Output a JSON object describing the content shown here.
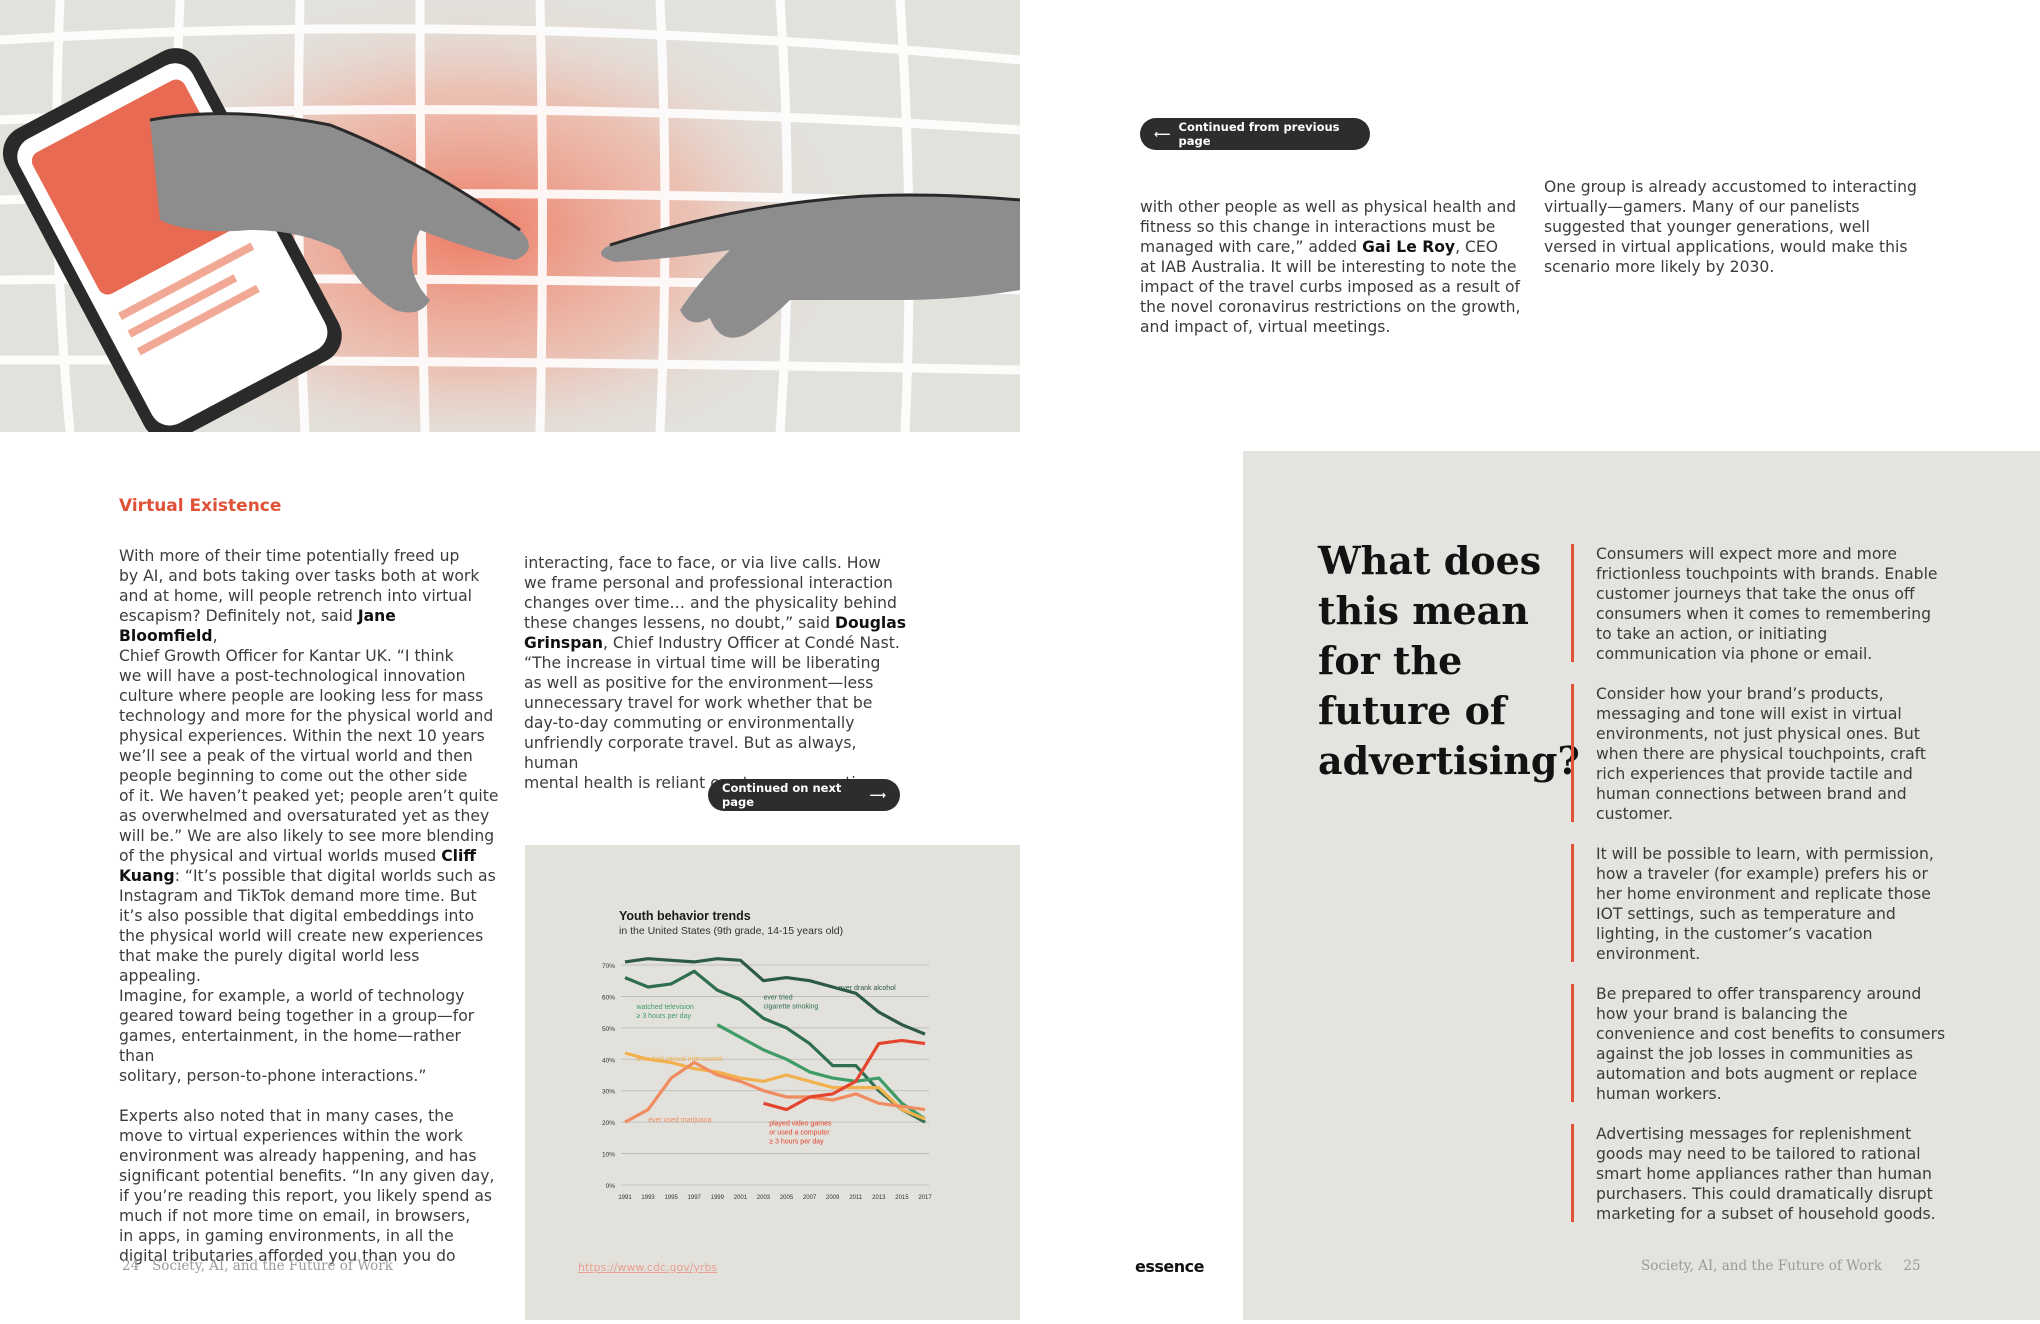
{
  "left_page": {
    "section_title": "Virtual Existence",
    "col1": [
      {
        "t": "With more of their time potentially freed up\nby AI, and bots taking over tasks both at work\nand at home, will people retrench into virtual\nescapism? Definitely not, said "
      },
      {
        "t": "Jane Bloomfield",
        "b": true
      },
      {
        "t": ",\nChief Growth Officer for Kantar UK. “I think\nwe will have a post-technological innovation\nculture where people are looking less for mass\ntechnology and more for the physical world and\nphysical experiences. Within the next 10 years\nwe’ll see a peak of the virtual world and then\npeople beginning to come out the other side\nof it. We haven’t peaked yet; people aren’t quite\nas overwhelmed and oversaturated yet as they\nwill be.” We are also likely to see more blending\nof the physical and virtual worlds mused "
      },
      {
        "t": "Cliff\nKuang",
        "b": true
      },
      {
        "t": ": “It’s possible that digital worlds such as\nInstagram and TikTok demand more time. But\nit’s also possible that digital embeddings into\nthe physical world will create new experiences\nthat make the purely digital world less appealing.\nImagine, for example, a world of technology\ngeared toward being together in a group—for\ngames, entertainment, in the home—rather than\nsolitary, person-to-phone interactions.”\n\nExperts also noted that in many cases, the\nmove to virtual experiences within the work\nenvironment was already happening, and has\nsignificant potential benefits. “In any given day,\nif you’re reading this report, you likely spend as\nmuch if not more time on email, in browsers,\nin apps, in gaming environments, in all the\ndigital tributaries afforded you than you do"
      }
    ],
    "col2": [
      {
        "t": "interacting, face to face, or via live calls. How\nwe frame personal and professional interaction\nchanges over time… and the physicality behind\nthese changes lessens, no doubt,” said "
      },
      {
        "t": "Douglas\nGrinspan",
        "b": true
      },
      {
        "t": ", Chief Industry Officer at Condé Nast.\n“The increase in virtual time will be liberating\nas well as positive for the environment—less\nunnecessary travel for work whether that be\nday-to-day commuting or environmentally\nunfriendly corporate travel. But as always, human\nmental health is reliant on strong connections"
      }
    ],
    "continued_next": "Continued on next page",
    "source_link": "https://www.cdc.gov/yrbs",
    "footer": {
      "page_number": "24",
      "title": "Society, AI, and the Future of Work"
    }
  },
  "chart_data": {
    "type": "line",
    "title": "Youth behavior trends",
    "subtitle": "in the United States (9th grade, 14-15 years old)",
    "x": [
      "1991",
      "1993",
      "1995",
      "1997",
      "1999",
      "2001",
      "2003",
      "2005",
      "2007",
      "2009",
      "2011",
      "2013",
      "2015",
      "2017"
    ],
    "y_ticks": [
      "0%",
      "10%",
      "20%",
      "30%",
      "40%",
      "50%",
      "60%",
      "70%"
    ],
    "ylim": [
      0,
      70
    ],
    "series": [
      {
        "name": "ever drank alcohol",
        "color": "#2c5a45",
        "values": [
          [
            1991,
            71
          ],
          [
            1993,
            72
          ],
          [
            1995,
            71.5
          ],
          [
            1997,
            71
          ],
          [
            1999,
            72
          ],
          [
            2001,
            71.5
          ],
          [
            2003,
            65
          ],
          [
            2005,
            66
          ],
          [
            2007,
            65
          ],
          [
            2009,
            63
          ],
          [
            2011,
            61
          ],
          [
            2013,
            55
          ],
          [
            2015,
            51
          ],
          [
            2017,
            48
          ]
        ]
      },
      {
        "name": "ever tried\ncigarette smoking",
        "color": "#2e6e50",
        "values": [
          [
            1991,
            66
          ],
          [
            1993,
            63
          ],
          [
            1995,
            64
          ],
          [
            1997,
            68
          ],
          [
            1999,
            62
          ],
          [
            2001,
            59
          ],
          [
            2003,
            53
          ],
          [
            2005,
            50
          ],
          [
            2007,
            45
          ],
          [
            2009,
            38
          ],
          [
            2011,
            38
          ],
          [
            2013,
            30
          ],
          [
            2015,
            24
          ],
          [
            2017,
            20
          ]
        ]
      },
      {
        "name": "watched television\n≥ 3 hours per day",
        "color": "#3f9c67",
        "values": [
          [
            1999,
            51
          ],
          [
            2001,
            47
          ],
          [
            2003,
            43
          ],
          [
            2005,
            40
          ],
          [
            2007,
            36
          ],
          [
            2009,
            34
          ],
          [
            2011,
            33
          ],
          [
            2013,
            34
          ],
          [
            2015,
            26
          ],
          [
            2017,
            21
          ]
        ]
      },
      {
        "name": "ever had sexual intercourse",
        "color": "#f3b14e",
        "values": [
          [
            1991,
            42
          ],
          [
            1993,
            40
          ],
          [
            1995,
            39
          ],
          [
            1997,
            37
          ],
          [
            1999,
            36
          ],
          [
            2001,
            34
          ],
          [
            2003,
            33
          ],
          [
            2005,
            35
          ],
          [
            2007,
            33
          ],
          [
            2009,
            31
          ],
          [
            2011,
            31
          ],
          [
            2013,
            31
          ],
          [
            2015,
            24
          ],
          [
            2017,
            21
          ]
        ]
      },
      {
        "name": "ever used marijuana",
        "color": "#ef8c60",
        "values": [
          [
            1991,
            20
          ],
          [
            1993,
            24
          ],
          [
            1995,
            34
          ],
          [
            1997,
            39
          ],
          [
            1999,
            35
          ],
          [
            2001,
            33
          ],
          [
            2003,
            30
          ],
          [
            2005,
            28
          ],
          [
            2007,
            28
          ],
          [
            2009,
            27
          ],
          [
            2011,
            29
          ],
          [
            2013,
            26
          ],
          [
            2015,
            25
          ],
          [
            2017,
            24
          ]
        ]
      },
      {
        "name": "played video games\nor used a computer\n≥ 3 hours per day",
        "color": "#e3452f",
        "values": [
          [
            2003,
            26
          ],
          [
            2005,
            24
          ],
          [
            2007,
            28
          ],
          [
            2009,
            29
          ],
          [
            2011,
            33
          ],
          [
            2013,
            45
          ],
          [
            2015,
            46
          ],
          [
            2017,
            45
          ]
        ]
      }
    ],
    "grid": true
  },
  "right_page": {
    "continued_prev": "Continued from previous page",
    "colA": [
      {
        "t": "with other people as well as physical health and\nfitness so this change in interactions must be\nmanaged with care,” added "
      },
      {
        "t": "Gai Le Roy",
        "b": true
      },
      {
        "t": ", CEO\nat IAB Australia. It will be interesting to note the\nimpact of the travel curbs imposed as a result of\nthe novel coronavirus restrictions on the growth,\nand impact of, virtual meetings."
      }
    ],
    "colB": "One group is already accustomed to interacting\nvirtually—gamers. Many of our panelists\nsuggested that younger generations, well\nversed in virtual applications, would make this\nscenario more likely by 2030.",
    "question": "What does\nthis mean\nfor the\nfuture of\nadvertising?",
    "bullets": [
      "Consumers will expect more and more frictionless touchpoints with brands. Enable customer journeys that take the onus off consumers when it comes to remembering to take an action, or initiating communication via phone or email.",
      "Consider how your brand’s products, messaging and tone will exist in virtual environments, not just physical ones. But when there are physical touchpoints, craft rich experiences that provide tactile and human connections between brand and customer.",
      "It will be possible to learn, with permission, how a traveler (for example) prefers his or her home environment and replicate those IOT settings, such as temperature and lighting, in the customer’s vacation environment.",
      "Be prepared to offer transparency around how your brand is balancing the convenience and cost benefits to consumers against the job losses in communities as automation and bots augment or replace human workers.",
      "Advertising messages for replenishment goods may need to be tailored to rational smart home appliances rather than human purchasers. This could dramatically disrupt marketing for a subset of household goods."
    ],
    "logo": "essence",
    "footer": {
      "page_number": "25",
      "title": "Society, AI, and the Future of Work"
    }
  },
  "colors": {
    "accent": "#e05238",
    "panel": "#e4e3df",
    "dark_pill": "#2d2d2d"
  }
}
